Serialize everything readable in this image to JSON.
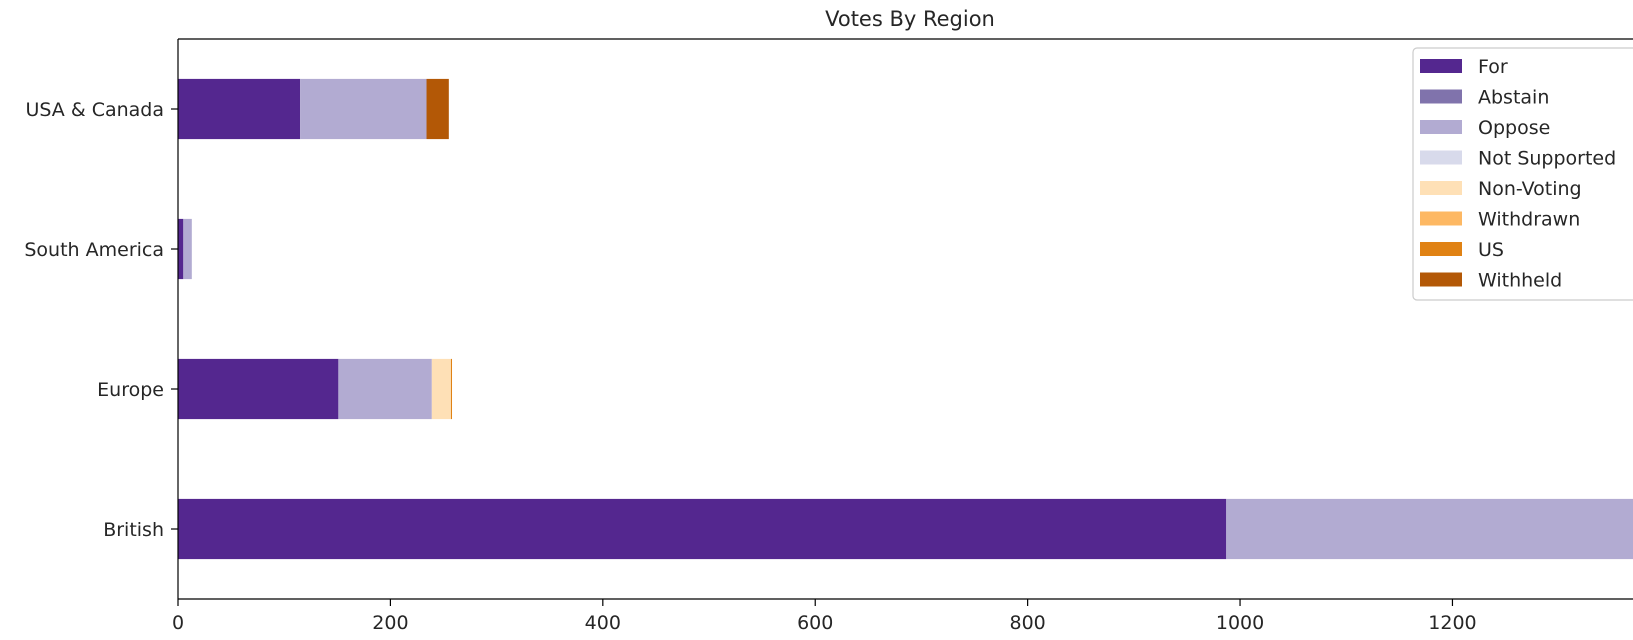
{
  "chart_data": {
    "type": "bar",
    "orientation": "horizontal",
    "stacked": true,
    "title": "Votes By Region",
    "xlabel": "",
    "ylabel": "",
    "xlim": [
      0,
      1370
    ],
    "x_ticks": [
      0,
      200,
      400,
      600,
      800,
      1000,
      1200
    ],
    "categories": [
      "USA & Canada",
      "South America",
      "Europe",
      "British"
    ],
    "series": [
      {
        "name": "For",
        "color": "#54278f",
        "values": [
          115,
          5,
          151,
          987
        ]
      },
      {
        "name": "Abstain",
        "color": "#8073ac",
        "values": [
          0,
          0,
          0,
          0
        ]
      },
      {
        "name": "Oppose",
        "color": "#b2abd2",
        "values": [
          119,
          8,
          88,
          383
        ]
      },
      {
        "name": "Not Supported",
        "color": "#d8daeb",
        "values": [
          0,
          0,
          0,
          0
        ]
      },
      {
        "name": "Non-Voting",
        "color": "#fee0b6",
        "values": [
          0,
          0,
          18,
          0
        ]
      },
      {
        "name": "Withdrawn",
        "color": "#fdb863",
        "values": [
          0,
          0,
          0,
          0
        ]
      },
      {
        "name": "US",
        "color": "#e08214",
        "values": [
          0,
          0,
          1,
          0
        ]
      },
      {
        "name": "Withheld",
        "color": "#b35806",
        "values": [
          21,
          0,
          0,
          0
        ]
      }
    ],
    "legend": "top-right",
    "grid": false
  }
}
